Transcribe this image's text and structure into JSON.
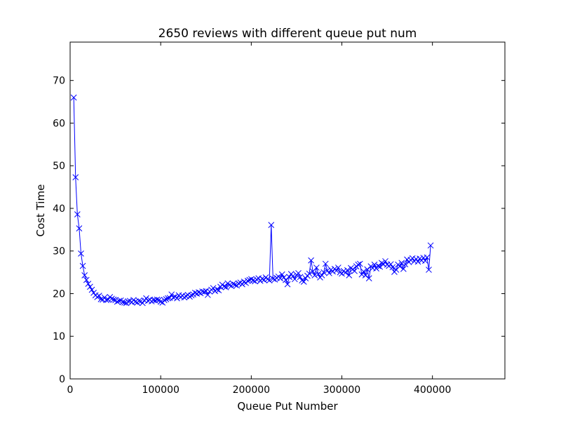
{
  "chart_data": {
    "type": "line",
    "title": "2650 reviews with different queue put num",
    "xlabel": "Queue Put Number",
    "ylabel": "Cost Time",
    "xlim": [
      0,
      480000
    ],
    "ylim": [
      0,
      79
    ],
    "xticks": [
      0,
      100000,
      200000,
      300000,
      400000
    ],
    "xtick_labels": [
      "0",
      "100000",
      "200000",
      "300000",
      "400000"
    ],
    "yticks": [
      0,
      10,
      20,
      30,
      40,
      50,
      60,
      70
    ],
    "ytick_labels": [
      "0",
      "10",
      "20",
      "30",
      "40",
      "50",
      "60",
      "70"
    ],
    "grid": false,
    "legend": "none",
    "series": [
      {
        "color": "#0000ff",
        "marker": "x",
        "x": [
          4000,
          6000,
          8000,
          10000,
          12000,
          14000,
          16000,
          18000,
          20000,
          22000,
          24000,
          26000,
          28000,
          30000,
          32000,
          34000,
          36000,
          38000,
          40000,
          42000,
          44000,
          46000,
          48000,
          50000,
          52000,
          54000,
          56000,
          58000,
          60000,
          62000,
          64000,
          66000,
          68000,
          70000,
          72000,
          74000,
          76000,
          78000,
          80000,
          82000,
          84000,
          86000,
          88000,
          90000,
          92000,
          94000,
          96000,
          98000,
          100000,
          102000,
          104000,
          106000,
          108000,
          110000,
          112000,
          114000,
          116000,
          118000,
          120000,
          122000,
          124000,
          126000,
          128000,
          130000,
          132000,
          134000,
          136000,
          138000,
          140000,
          142000,
          144000,
          146000,
          148000,
          150000,
          152000,
          154000,
          156000,
          158000,
          160000,
          162000,
          164000,
          166000,
          168000,
          170000,
          172000,
          174000,
          176000,
          178000,
          180000,
          182000,
          184000,
          186000,
          188000,
          190000,
          192000,
          194000,
          196000,
          198000,
          200000,
          202000,
          204000,
          206000,
          208000,
          210000,
          212000,
          214000,
          216000,
          218000,
          220000,
          222000,
          224000,
          226000,
          228000,
          230000,
          232000,
          234000,
          236000,
          238000,
          240000,
          242000,
          244000,
          246000,
          248000,
          250000,
          252000,
          254000,
          256000,
          258000,
          260000,
          262000,
          264000,
          266000,
          268000,
          270000,
          272000,
          274000,
          276000,
          278000,
          280000,
          282000,
          284000,
          286000,
          288000,
          290000,
          292000,
          294000,
          296000,
          298000,
          300000,
          302000,
          304000,
          306000,
          308000,
          310000,
          312000,
          314000,
          316000,
          318000,
          320000,
          322000,
          324000,
          326000,
          328000,
          330000,
          332000,
          334000,
          336000,
          338000,
          340000,
          342000,
          344000,
          346000,
          348000,
          350000,
          352000,
          354000,
          356000,
          358000,
          360000,
          362000,
          364000,
          366000,
          368000,
          370000,
          372000,
          374000,
          376000,
          378000,
          380000,
          382000,
          384000,
          386000,
          388000,
          390000,
          392000,
          394000,
          396000,
          398000
        ],
        "y": [
          66.0,
          47.3,
          38.6,
          35.3,
          29.4,
          26.5,
          24.3,
          23.2,
          22.3,
          21.6,
          20.9,
          20.2,
          19.6,
          19.2,
          19.5,
          18.7,
          18.6,
          19.1,
          18.5,
          18.6,
          19.2,
          18.8,
          18.6,
          18.5,
          18.1,
          18.3,
          18.4,
          18.0,
          17.9,
          17.8,
          18.2,
          18.3,
          18.0,
          18.5,
          18.1,
          17.9,
          18.3,
          18.2,
          17.8,
          18.4,
          18.9,
          18.3,
          18.6,
          18.2,
          18.5,
          18.4,
          18.6,
          18.5,
          18.1,
          17.9,
          18.5,
          18.7,
          18.9,
          19.0,
          19.8,
          19.1,
          19.3,
          18.9,
          19.6,
          19.2,
          19.5,
          19.1,
          19.4,
          19.7,
          19.3,
          19.6,
          19.8,
          20.2,
          20.0,
          20.3,
          20.1,
          20.5,
          20.4,
          20.6,
          19.7,
          20.5,
          20.9,
          21.3,
          20.6,
          21.0,
          20.8,
          21.6,
          22.1,
          21.7,
          21.5,
          22.4,
          22.0,
          21.8,
          22.3,
          22.1,
          21.9,
          22.4,
          22.6,
          22.2,
          22.8,
          22.5,
          23.0,
          23.2,
          23.4,
          23.1,
          22.9,
          23.3,
          23.6,
          23.0,
          23.5,
          23.2,
          23.8,
          23.4,
          23.1,
          36.1,
          23.5,
          23.3,
          23.7,
          24.0,
          23.6,
          24.5,
          23.8,
          23.2,
          22.2,
          23.9,
          24.6,
          24.1,
          23.4,
          24.4,
          24.8,
          23.9,
          23.1,
          22.8,
          23.6,
          24.2,
          24.7,
          27.8,
          25.2,
          24.3,
          26.1,
          24.6,
          23.8,
          24.3,
          25.0,
          27.0,
          25.4,
          24.8,
          25.6,
          25.2,
          25.8,
          25.4,
          26.1,
          25.0,
          24.7,
          25.3,
          24.9,
          25.5,
          24.3,
          26.0,
          25.7,
          25.3,
          26.4,
          26.8,
          27.0,
          24.5,
          25.2,
          24.3,
          25.7,
          23.6,
          26.4,
          26.0,
          26.8,
          25.9,
          26.5,
          26.3,
          27.2,
          26.9,
          27.6,
          26.8,
          26.5,
          26.9,
          26.2,
          25.1,
          25.6,
          26.8,
          26.4,
          27.2,
          25.8,
          26.9,
          28.0,
          27.4,
          27.9,
          28.3,
          27.6,
          28.1,
          27.5,
          28.2,
          27.8,
          28.4,
          27.7,
          28.5,
          25.6,
          31.3
        ]
      }
    ]
  }
}
